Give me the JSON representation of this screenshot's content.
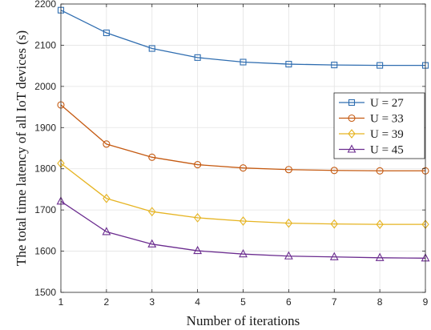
{
  "chart_data": {
    "type": "line",
    "xlabel": "Number of iterations",
    "ylabel": "The total time latency of all IoT devices (s)",
    "x": [
      1,
      2,
      3,
      4,
      5,
      6,
      7,
      8,
      9
    ],
    "xlim": [
      1,
      9
    ],
    "ylim": [
      1500,
      2200
    ],
    "xticks": [
      1,
      2,
      3,
      4,
      5,
      6,
      7,
      8,
      9
    ],
    "yticks": [
      1500,
      1600,
      1700,
      1800,
      1900,
      2000,
      2100,
      2200
    ],
    "grid": true,
    "legend_position": "right",
    "series": [
      {
        "name": "U = 27",
        "color": "#2f6db0",
        "marker": "square",
        "values": [
          2185,
          2130,
          2092,
          2070,
          2059,
          2054,
          2052,
          2051,
          2051
        ]
      },
      {
        "name": "U = 33",
        "color": "#c55a11",
        "marker": "circle",
        "values": [
          1955,
          1860,
          1828,
          1810,
          1802,
          1798,
          1796,
          1795,
          1795
        ]
      },
      {
        "name": "U = 39",
        "color": "#e6b422",
        "marker": "diamond",
        "values": [
          1813,
          1728,
          1696,
          1681,
          1673,
          1668,
          1666,
          1665,
          1665
        ]
      },
      {
        "name": "U = 45",
        "color": "#6b2c8f",
        "marker": "triangle",
        "values": [
          1721,
          1647,
          1617,
          1601,
          1593,
          1588,
          1586,
          1584,
          1583
        ]
      }
    ]
  }
}
